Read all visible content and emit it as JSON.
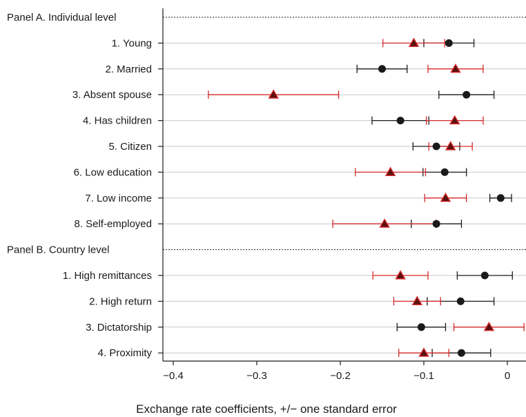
{
  "chart_data": {
    "type": "scatter",
    "xlabel": "Exchange rate coefficients, +/− one standard error",
    "xlim": [
      -0.43,
      0.03
    ],
    "x_ticks": [
      -0.4,
      -0.3,
      -0.2,
      -0.1,
      0
    ],
    "x_tick_labels": [
      "−0.4",
      "−0.3",
      "−0.2",
      "−0.1",
      "0"
    ],
    "colors": {
      "series_a": "#1a1a1a",
      "series_b": "#d62728"
    },
    "panels": [
      {
        "label": "Panel A. Individual level",
        "rows": [
          {
            "label": "1. Young",
            "black": {
              "est": -0.07,
              "se": 0.03
            },
            "red": {
              "est": -0.112,
              "se": 0.037
            }
          },
          {
            "label": "2. Married",
            "black": {
              "est": -0.15,
              "se": 0.03
            },
            "red": {
              "est": -0.062,
              "se": 0.033
            }
          },
          {
            "label": "3. Absent spouse",
            "black": {
              "est": -0.049,
              "se": 0.033
            },
            "red": {
              "est": -0.28,
              "se": 0.078
            }
          },
          {
            "label": "4. Has children",
            "black": {
              "est": -0.128,
              "se": 0.034
            },
            "red": {
              "est": -0.063,
              "se": 0.034
            }
          },
          {
            "label": "5. Citizen",
            "black": {
              "est": -0.085,
              "se": 0.028
            },
            "red": {
              "est": -0.068,
              "se": 0.026
            }
          },
          {
            "label": "6. Low education",
            "black": {
              "est": -0.075,
              "se": 0.026
            },
            "red": {
              "est": -0.14,
              "se": 0.042
            }
          },
          {
            "label": "7. Low income",
            "black": {
              "est": -0.008,
              "se": 0.013
            },
            "red": {
              "est": -0.074,
              "se": 0.025
            }
          },
          {
            "label": "8. Self-employed",
            "black": {
              "est": -0.085,
              "se": 0.03
            },
            "red": {
              "est": -0.147,
              "se": 0.062
            }
          }
        ]
      },
      {
        "label": "Panel B. Country level",
        "rows": [
          {
            "label": "1. High remittances",
            "black": {
              "est": -0.027,
              "se": 0.033
            },
            "red": {
              "est": -0.128,
              "se": 0.033
            }
          },
          {
            "label": "2. High return",
            "black": {
              "est": -0.056,
              "se": 0.04
            },
            "red": {
              "est": -0.108,
              "se": 0.028
            }
          },
          {
            "label": "3. Dictatorship",
            "black": {
              "est": -0.103,
              "se": 0.029
            },
            "red": {
              "est": -0.022,
              "se": 0.042
            }
          },
          {
            "label": "4. Proximity",
            "black": {
              "est": -0.055,
              "se": 0.035
            },
            "red": {
              "est": -0.1,
              "se": 0.03
            }
          }
        ]
      }
    ]
  }
}
